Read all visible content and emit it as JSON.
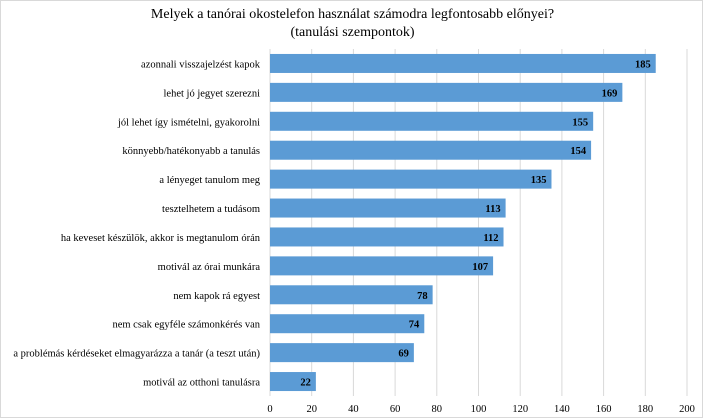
{
  "chart_data": {
    "type": "bar",
    "orientation": "horizontal",
    "title": "Melyek a tanórai okostelefon használat számodra legfontosabb előnyei?",
    "subtitle": "(tanulási szempontok)",
    "categories": [
      "azonnali visszajelzést kapok",
      "lehet jó jegyet szerezni",
      "jól lehet így ismételni, gyakorolni",
      "könnyebb/hatékonyabb a tanulás",
      "a lényeget tanulom meg",
      "tesztelhetem a tudásom",
      "ha keveset készülök, akkor is megtanulom órán",
      "motivál az órai munkára",
      "nem kapok rá egyest",
      "nem csak egyféle számonkérés van",
      "a problémás kérdéseket elmagyarázza a tanár (a teszt után)",
      "motivál az otthoni tanulásra"
    ],
    "values": [
      185,
      169,
      155,
      154,
      135,
      113,
      112,
      107,
      78,
      74,
      69,
      22
    ],
    "xlim": [
      0,
      200
    ],
    "xticks": [
      0,
      20,
      40,
      60,
      80,
      100,
      120,
      140,
      160,
      180,
      200
    ],
    "grid": true,
    "data_labels": true,
    "bar_color": "#5b9bd5"
  }
}
